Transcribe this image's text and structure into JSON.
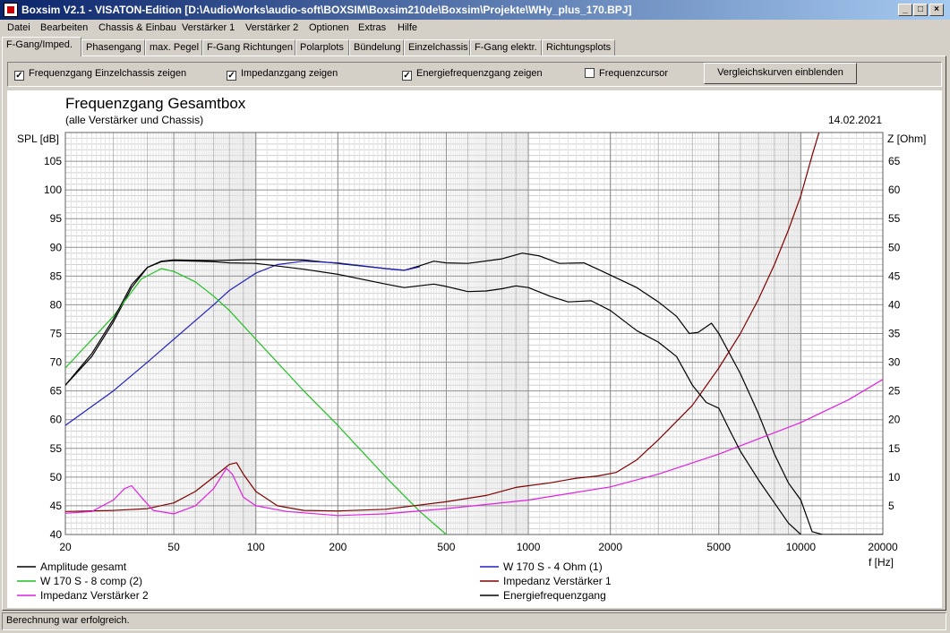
{
  "window": {
    "title": "Boxsim V2.1 - VISATON-Edition [D:\\AudioWorks\\audio-soft\\BOXSIM\\Boxsim210de\\Boxsim\\Projekte\\WHy_plus_170.BPJ]",
    "btn_min": "_",
    "btn_max": "□",
    "btn_close": "×"
  },
  "menu": [
    "Datei",
    "Bearbeiten",
    "Chassis & Einbau",
    "Verstärker 1",
    "Verstärker 2",
    "Optionen",
    "Extras",
    "Hilfe"
  ],
  "tabs": [
    "F-Gang/Imped.",
    "Phasengang",
    "max. Pegel",
    "F-Gang Richtungen",
    "Polarplots",
    "Bündelung",
    "Einzelchassis",
    "F-Gang elektr.",
    "Richtungsplots"
  ],
  "active_tab": 0,
  "options": {
    "cb1": {
      "label": "Frequenzgang Einzelchassis zeigen",
      "checked": true
    },
    "cb2": {
      "label": "Impedanzgang zeigen",
      "checked": true
    },
    "cb3": {
      "label": "Energiefrequenzgang zeigen",
      "checked": true
    },
    "cb4": {
      "label": "Frequenzcursor",
      "checked": false
    },
    "compare_button": "Vergleichskurven einblenden"
  },
  "status": "Berechnung war erfolgreich.",
  "chart_data": {
    "type": "line",
    "title": "Frequenzgang Gesamtbox",
    "subtitle": "(alle Verstärker und Chassis)",
    "date": "14.02.2021",
    "ylabel": "SPL [dB]",
    "y2label": "Z [Ohm]",
    "xlabel": "f [Hz]",
    "xscale": "log",
    "xlim": [
      20,
      20000
    ],
    "ylim": [
      40,
      110
    ],
    "y2lim": [
      0,
      70
    ],
    "xticks": [
      20,
      50,
      100,
      200,
      500,
      1000,
      2000,
      5000,
      10000,
      20000
    ],
    "xtick_labels": [
      "20",
      "50",
      "100",
      "200",
      "500",
      "1000",
      "2000",
      "5000",
      "10000",
      "20000"
    ],
    "yticks": [
      40,
      45,
      50,
      55,
      60,
      65,
      70,
      75,
      80,
      85,
      90,
      95,
      100,
      105
    ],
    "ytick_labels": [
      "40",
      "45",
      "50",
      "55",
      "60",
      "65",
      "70",
      "75",
      "80",
      "85",
      "90",
      "95",
      "100",
      "105"
    ],
    "y2ticks": [
      5,
      10,
      15,
      20,
      25,
      30,
      35,
      40,
      45,
      50,
      55,
      60,
      65
    ],
    "y2tick_labels": [
      "5",
      "10",
      "15",
      "20",
      "25",
      "30",
      "35",
      "40",
      "45",
      "50",
      "55",
      "60",
      "65"
    ],
    "grid": true,
    "legend_position": "bottom",
    "series": [
      {
        "name": "Amplitude gesamt",
        "color": "#000000",
        "axis": "left",
        "points": [
          [
            20,
            66
          ],
          [
            25,
            71
          ],
          [
            30,
            77
          ],
          [
            35,
            83
          ],
          [
            40,
            86.5
          ],
          [
            45,
            87.6
          ],
          [
            50,
            87.8
          ],
          [
            70,
            87.7
          ],
          [
            100,
            87.9
          ],
          [
            150,
            87.8
          ],
          [
            200,
            87.2
          ],
          [
            300,
            86.3
          ],
          [
            350,
            86
          ],
          [
            400,
            86.8
          ],
          [
            450,
            87.6
          ],
          [
            500,
            87.3
          ],
          [
            600,
            87.2
          ],
          [
            800,
            88
          ],
          [
            950,
            89
          ],
          [
            1100,
            88.5
          ],
          [
            1300,
            87.2
          ],
          [
            1600,
            87.3
          ],
          [
            1800,
            86.2
          ],
          [
            2500,
            83
          ],
          [
            3000,
            80.5
          ],
          [
            3500,
            78
          ],
          [
            3900,
            75
          ],
          [
            4200,
            75.2
          ],
          [
            4700,
            76.8
          ],
          [
            5000,
            75
          ],
          [
            6000,
            68
          ],
          [
            7000,
            61
          ],
          [
            8000,
            54
          ],
          [
            9000,
            49
          ],
          [
            10000,
            46
          ],
          [
            11000,
            40.5
          ],
          [
            12000,
            40
          ],
          [
            20000,
            40
          ]
        ]
      },
      {
        "name": "W 170 S - 4 Ohm (1)",
        "color": "#2020c0",
        "axis": "left",
        "points": [
          [
            20,
            59
          ],
          [
            30,
            65
          ],
          [
            40,
            70
          ],
          [
            50,
            74
          ],
          [
            70,
            80
          ],
          [
            80,
            82.5
          ],
          [
            100,
            85.5
          ],
          [
            120,
            87
          ],
          [
            150,
            87.6
          ],
          [
            200,
            87.3
          ],
          [
            300,
            86.3
          ],
          [
            350,
            86
          ],
          [
            400,
            86.6
          ]
        ]
      },
      {
        "name": "W 170 S - 8 comp (2)",
        "color": "#20c020",
        "axis": "left",
        "points": [
          [
            20,
            69
          ],
          [
            30,
            78
          ],
          [
            38,
            84.5
          ],
          [
            45,
            86.3
          ],
          [
            50,
            85.8
          ],
          [
            60,
            84
          ],
          [
            70,
            81.5
          ],
          [
            80,
            79
          ],
          [
            100,
            74
          ],
          [
            150,
            65
          ],
          [
            200,
            59
          ],
          [
            300,
            50
          ],
          [
            400,
            44
          ],
          [
            500,
            40
          ]
        ]
      },
      {
        "name": "Impedanz Verstärker 1",
        "color": "#800000",
        "axis": "right",
        "points": [
          [
            20,
            4
          ],
          [
            30,
            4.2
          ],
          [
            40,
            4.5
          ],
          [
            50,
            5.5
          ],
          [
            60,
            7.5
          ],
          [
            70,
            10
          ],
          [
            80,
            12.2
          ],
          [
            85,
            12.5
          ],
          [
            90,
            10.5
          ],
          [
            100,
            7.5
          ],
          [
            120,
            5
          ],
          [
            150,
            4.2
          ],
          [
            200,
            4.1
          ],
          [
            300,
            4.4
          ],
          [
            500,
            5.7
          ],
          [
            700,
            6.8
          ],
          [
            900,
            8.2
          ],
          [
            1000,
            8.5
          ],
          [
            1200,
            9
          ],
          [
            1500,
            9.8
          ],
          [
            1800,
            10.2
          ],
          [
            2100,
            10.8
          ],
          [
            2500,
            13
          ],
          [
            3000,
            16.5
          ],
          [
            4000,
            22.5
          ],
          [
            5000,
            29
          ],
          [
            6000,
            35
          ],
          [
            7000,
            41
          ],
          [
            8000,
            47
          ],
          [
            9000,
            53
          ],
          [
            10000,
            59
          ],
          [
            11000,
            66
          ],
          [
            12000,
            72
          ]
        ]
      },
      {
        "name": "Impedanz Verstärker 2",
        "color": "#e020e0",
        "axis": "right",
        "points": [
          [
            20,
            3.7
          ],
          [
            25,
            4
          ],
          [
            30,
            6
          ],
          [
            33,
            8
          ],
          [
            35,
            8.5
          ],
          [
            38,
            6.5
          ],
          [
            42,
            4.2
          ],
          [
            50,
            3.6
          ],
          [
            60,
            5
          ],
          [
            70,
            8
          ],
          [
            78,
            11.5
          ],
          [
            82,
            10.5
          ],
          [
            90,
            6.5
          ],
          [
            100,
            5
          ],
          [
            130,
            4
          ],
          [
            200,
            3.3
          ],
          [
            300,
            3.6
          ],
          [
            500,
            4.5
          ],
          [
            1000,
            6
          ],
          [
            2000,
            8.3
          ],
          [
            3000,
            10.5
          ],
          [
            5000,
            14
          ],
          [
            10000,
            19.5
          ],
          [
            15000,
            23.5
          ],
          [
            20000,
            27
          ]
        ]
      },
      {
        "name": "Energiefrequenzgang",
        "color": "#000000",
        "axis": "left",
        "points": [
          [
            20,
            66
          ],
          [
            25,
            71.5
          ],
          [
            30,
            77.5
          ],
          [
            35,
            83.5
          ],
          [
            40,
            86.5
          ],
          [
            45,
            87.5
          ],
          [
            50,
            87.7
          ],
          [
            70,
            87.5
          ],
          [
            80,
            87.3
          ],
          [
            100,
            87.2
          ],
          [
            150,
            86.2
          ],
          [
            200,
            85.3
          ],
          [
            300,
            83.6
          ],
          [
            350,
            83
          ],
          [
            450,
            83.6
          ],
          [
            500,
            83.2
          ],
          [
            600,
            82.3
          ],
          [
            700,
            82.4
          ],
          [
            800,
            82.8
          ],
          [
            900,
            83.3
          ],
          [
            1000,
            83
          ],
          [
            1200,
            81.5
          ],
          [
            1400,
            80.5
          ],
          [
            1700,
            80.7
          ],
          [
            2000,
            79
          ],
          [
            2500,
            75.5
          ],
          [
            3000,
            73.5
          ],
          [
            3500,
            71
          ],
          [
            4000,
            66
          ],
          [
            4500,
            63
          ],
          [
            5000,
            62
          ],
          [
            5500,
            58
          ],
          [
            6000,
            54.5
          ],
          [
            7000,
            49.5
          ],
          [
            8000,
            45.5
          ],
          [
            9000,
            42
          ],
          [
            10000,
            40
          ]
        ]
      }
    ]
  }
}
